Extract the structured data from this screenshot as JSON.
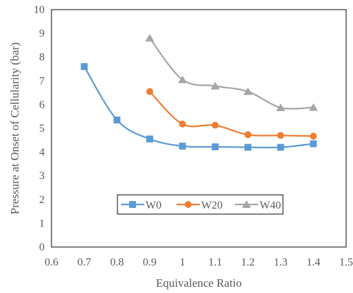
{
  "chart_data": {
    "type": "line",
    "xlabel": "Equivalence Ratio",
    "ylabel": "Pressure at Onset of Cellularity (bar)",
    "xlim": [
      0.6,
      1.5
    ],
    "ylim": [
      0,
      10
    ],
    "x_ticks": [
      "0.6",
      "0.7",
      "0.8",
      "0.9",
      "1",
      "1.1",
      "1.2",
      "1.3",
      "1.4",
      "1.5"
    ],
    "y_ticks": [
      "0",
      "1",
      "2",
      "3",
      "4",
      "5",
      "6",
      "7",
      "8",
      "9",
      "10"
    ],
    "grid": false,
    "legend_position": "bottom-center",
    "series": [
      {
        "name": "W0",
        "color": "#5b9bd5",
        "marker": "square",
        "x": [
          0.7,
          0.8,
          0.9,
          1.0,
          1.1,
          1.2,
          1.3,
          1.4
        ],
        "y": [
          7.6,
          5.35,
          4.55,
          4.25,
          4.22,
          4.2,
          4.2,
          4.35
        ]
      },
      {
        "name": "W20",
        "color": "#ed7d31",
        "marker": "circle",
        "x": [
          0.9,
          1.0,
          1.1,
          1.2,
          1.3,
          1.4
        ],
        "y": [
          6.55,
          5.18,
          5.13,
          4.73,
          4.7,
          4.67
        ]
      },
      {
        "name": "W40",
        "color": "#a5a5a5",
        "marker": "triangle",
        "x": [
          0.9,
          1.0,
          1.1,
          1.2,
          1.3,
          1.4
        ],
        "y": [
          8.8,
          7.05,
          6.78,
          6.55,
          5.87,
          5.88
        ]
      }
    ]
  }
}
